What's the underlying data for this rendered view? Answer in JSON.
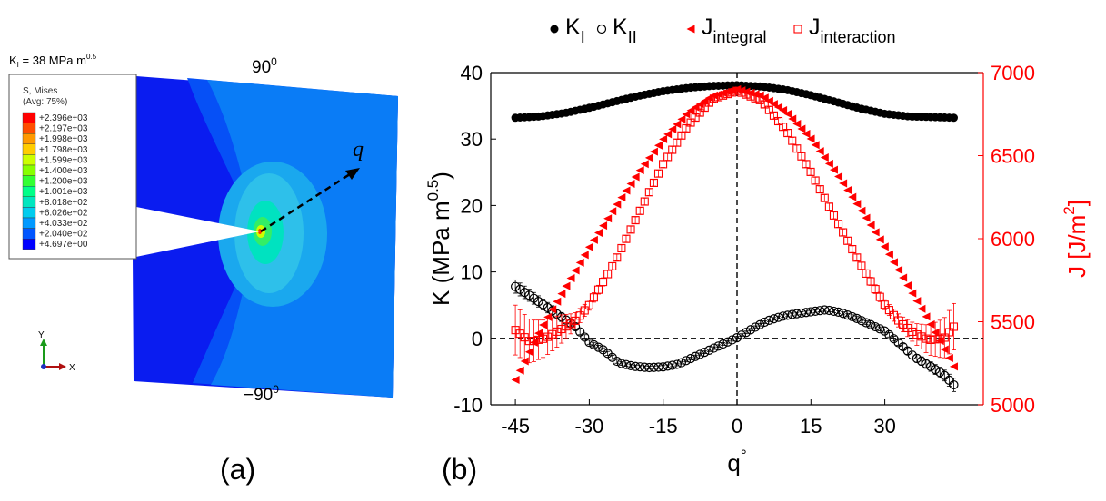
{
  "panel_a": {
    "ki_label": "K",
    "ki_sub": "I",
    "ki_value": " = 38 MPa m",
    "ki_sup": "0.5",
    "legend_title_1": "S, Mises",
    "legend_title_2": "(Avg: 75%)",
    "legend_entries": [
      "+2.396e+03",
      "+2.197e+03",
      "+1.998e+03",
      "+1.798e+03",
      "+1.599e+03",
      "+1.400e+03",
      "+1.200e+03",
      "+1.001e+03",
      "+8.018e+02",
      "+6.026e+02",
      "+4.033e+02",
      "+2.040e+02",
      "+4.697e+00"
    ],
    "legend_colors": [
      "#ff0000",
      "#ff4d00",
      "#ff9900",
      "#ffcc00",
      "#ccff00",
      "#88ff00",
      "#33ff33",
      "#00ff88",
      "#00e6bf",
      "#00ccee",
      "#0099ff",
      "#0055ff",
      "#0000ff"
    ],
    "angle_top": "90",
    "angle_bottom": "−90",
    "angle_sup": "0",
    "q_label": "q",
    "axis_y": "Y",
    "axis_x": "X",
    "panel_label": "(a)"
  },
  "panel_b_label": "(b)",
  "chart_data": {
    "type": "scatter",
    "legend": [
      {
        "symbol": "filled-circle",
        "label": "K",
        "sub": "I",
        "color": "#000000"
      },
      {
        "symbol": "open-circle",
        "label": "K",
        "sub": "II",
        "color": "#000000"
      },
      {
        "symbol": "filled-triangle",
        "label": "J",
        "sub": "integral",
        "color": "#ff0000"
      },
      {
        "symbol": "open-square",
        "label": "J",
        "sub": "interaction",
        "color": "#ff0000"
      }
    ],
    "xlabel": "q",
    "xlabel_sup": "°",
    "ylabel_left": "K (MPa m",
    "ylabel_left_sup": "0.5",
    "ylabel_left_end": ")",
    "ylabel_right": "J [J/m",
    "ylabel_right_sup": "2",
    "ylabel_right_end": "]",
    "xlim": [
      -50,
      50
    ],
    "ylim_left": [
      -10,
      40
    ],
    "ylim_right": [
      5000,
      7000
    ],
    "xticks": [
      "-45",
      "-30",
      "-15",
      "0",
      "15",
      "30"
    ],
    "xtick_values": [
      -45,
      -30,
      -15,
      0,
      15,
      30
    ],
    "yticks_left": [
      "40",
      "30",
      "20",
      "10",
      "0",
      "-10"
    ],
    "ytick_left_values": [
      40,
      30,
      20,
      10,
      0,
      -10
    ],
    "yticks_right": [
      "7000",
      "6500",
      "6000",
      "5500",
      "5000"
    ],
    "ytick_right_values": [
      7000,
      6500,
      6000,
      5500,
      5000
    ],
    "reference_lines": {
      "x": 0,
      "y_left": 0
    },
    "colors": {
      "k": "#000000",
      "j": "#ff0000"
    },
    "series": [
      {
        "name": "KI",
        "axis": "left",
        "marker": "filled-circle",
        "x": [
          -45,
          -40,
          -35,
          -30,
          -25,
          -20,
          -15,
          -10,
          -5,
          0,
          5,
          10,
          15,
          20,
          25,
          30,
          35,
          40,
          44
        ],
        "y": [
          33.2,
          33.4,
          33.9,
          34.7,
          35.6,
          36.5,
          37.2,
          37.7,
          38.0,
          38.1,
          37.9,
          37.4,
          36.6,
          35.6,
          34.6,
          33.8,
          33.4,
          33.3,
          33.2
        ]
      },
      {
        "name": "KII",
        "axis": "left",
        "marker": "open-circle",
        "x": [
          -45,
          -42,
          -39,
          -36,
          -33,
          -30,
          -27,
          -24,
          -21,
          -18,
          -15,
          -12,
          -9,
          -6,
          -3,
          0,
          3,
          6,
          9,
          12,
          15,
          18,
          21,
          24,
          27,
          30,
          33,
          36,
          39,
          42,
          44
        ],
        "y": [
          7.8,
          6.4,
          4.9,
          3.4,
          1.9,
          -0.6,
          -1.8,
          -3.7,
          -4.2,
          -4.4,
          -4.3,
          -3.9,
          -2.9,
          -1.9,
          -0.9,
          0.1,
          1.4,
          2.6,
          3.3,
          3.7,
          4.0,
          4.3,
          3.9,
          3.1,
          2.1,
          1.1,
          -0.8,
          -2.8,
          -4.1,
          -5.5,
          -7.0
        ],
        "err": [
          1.0,
          0.9,
          0.8,
          0.7,
          0.5,
          0.3,
          0.3,
          0.3,
          0.2,
          0.2,
          0.2,
          0.2,
          0.2,
          0.2,
          0.2,
          0.2,
          0.2,
          0.2,
          0.2,
          0.2,
          0.2,
          0.2,
          0.2,
          0.3,
          0.3,
          0.3,
          0.4,
          0.6,
          0.7,
          0.8,
          1.0
        ]
      },
      {
        "name": "Jintegral",
        "axis": "right",
        "marker": "filled-triangle",
        "x": [
          -45,
          -40,
          -35,
          -30,
          -25,
          -20,
          -15,
          -10,
          -5,
          0,
          5,
          10,
          15,
          20,
          25,
          30,
          35,
          40,
          44
        ],
        "y": [
          5150,
          5450,
          5700,
          5950,
          6180,
          6400,
          6600,
          6760,
          6860,
          6900,
          6860,
          6760,
          6600,
          6400,
          6180,
          5950,
          5700,
          5450,
          5230
        ]
      },
      {
        "name": "Jinteraction",
        "axis": "right",
        "marker": "open-square",
        "x": [
          -45,
          -42,
          -39,
          -36,
          -33,
          -30,
          -25,
          -20,
          -15,
          -10,
          -5,
          0,
          5,
          10,
          15,
          20,
          25,
          30,
          33,
          36,
          39,
          42,
          44
        ],
        "y": [
          5450,
          5380,
          5400,
          5450,
          5500,
          5600,
          5850,
          6150,
          6450,
          6680,
          6840,
          6890,
          6830,
          6650,
          6400,
          6120,
          5850,
          5600,
          5500,
          5430,
          5390,
          5400,
          5470
        ],
        "err": [
          150,
          130,
          110,
          90,
          50,
          30,
          20,
          20,
          20,
          20,
          20,
          20,
          20,
          20,
          20,
          20,
          20,
          30,
          40,
          60,
          90,
          120,
          140
        ]
      }
    ]
  }
}
